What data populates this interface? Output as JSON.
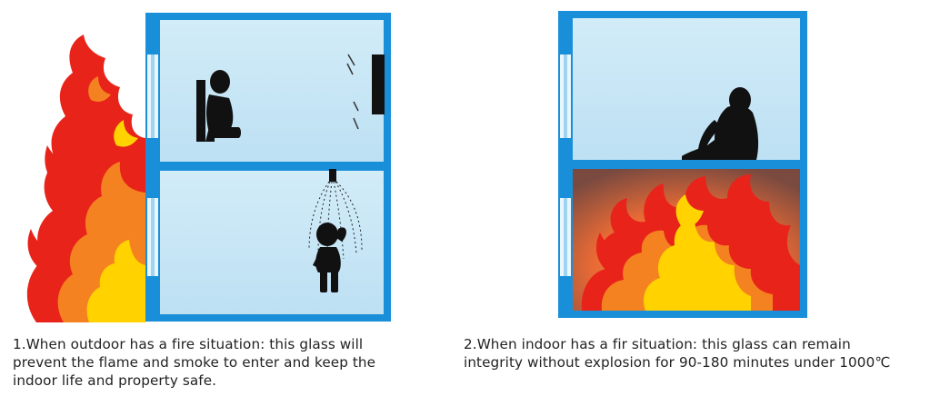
{
  "captions": {
    "left": {
      "line1": "1.When outdoor has a fire situation: this glass will",
      "line2": "prevent the flame and smoke to enter and keep the",
      "line3": "indoor life and property safe."
    },
    "right": {
      "line1": "2.When indoor has a fir situation: this glass can remain",
      "line2": "integrity without explosion for 90-180 minutes under 1000℃"
    }
  },
  "colors": {
    "frame": "#1a8fd9",
    "room": "#c5e6f6",
    "silhouette": "#111111",
    "flame_red": "#e8231a",
    "flame_orange": "#f58220",
    "flame_yellow": "#ffd200",
    "fire_room_glow": "#f07a3a"
  },
  "icons": {
    "outdoor_flames": "flame-icon",
    "indoor_flames": "flame-icon",
    "sprinkler": "sprinkler-icon"
  }
}
